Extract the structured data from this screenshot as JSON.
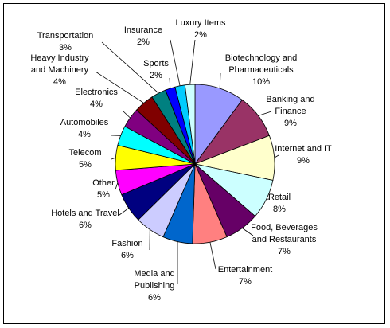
{
  "chart_data": {
    "type": "pie",
    "title": "",
    "legend": "none",
    "slices": [
      {
        "name": "Biotechnology and Pharmaceuticals",
        "label": "Biotechnology and\nPharmaceuticals",
        "value_label": "10%",
        "value": 10,
        "color": "#9999FF"
      },
      {
        "name": "Banking and Finance",
        "label": "Banking and\nFinance",
        "value_label": "9%",
        "value": 9,
        "color": "#993366"
      },
      {
        "name": "Internet and IT",
        "label": "Internet and IT",
        "value_label": "9%",
        "value": 9,
        "color": "#FFFFCC"
      },
      {
        "name": "Retail",
        "label": "Retail",
        "value_label": "8%",
        "value": 8,
        "color": "#CCFFFF"
      },
      {
        "name": "Food, Beverages and Restaurants",
        "label": "Food, Beverages\nand Restaurants",
        "value_label": "7%",
        "value": 7,
        "color": "#660066"
      },
      {
        "name": "Entertainment",
        "label": "Entertainment",
        "value_label": "7%",
        "value": 7,
        "color": "#FF8080"
      },
      {
        "name": "Media and Publishing",
        "label": "Media and\nPublishing",
        "value_label": "6%",
        "value": 6,
        "color": "#0066CC"
      },
      {
        "name": "Fashion",
        "label": "Fashion",
        "value_label": "6%",
        "value": 6,
        "color": "#CCCCFF"
      },
      {
        "name": "Hotels and Travel",
        "label": "Hotels and Travel",
        "value_label": "6%",
        "value": 6,
        "color": "#000080"
      },
      {
        "name": "Other",
        "label": "Other",
        "value_label": "5%",
        "value": 5,
        "color": "#FF00FF"
      },
      {
        "name": "Telecom",
        "label": "Telecom",
        "value_label": "5%",
        "value": 5,
        "color": "#FFFF00"
      },
      {
        "name": "Automobiles",
        "label": "Automobiles",
        "value_label": "4%",
        "value": 4,
        "color": "#00FFFF"
      },
      {
        "name": "Electronics",
        "label": "Electronics",
        "value_label": "4%",
        "value": 4,
        "color": "#800080"
      },
      {
        "name": "Heavy Industry and Machinery",
        "label": "Heavy Industry\nand Machinery",
        "value_label": "4%",
        "value": 4,
        "color": "#800000"
      },
      {
        "name": "Transportation",
        "label": "Transportation",
        "value_label": "3%",
        "value": 3,
        "color": "#008080"
      },
      {
        "name": "Sports",
        "label": "Sports",
        "value_label": "2%",
        "value": 2,
        "color": "#0000FF"
      },
      {
        "name": "Insurance",
        "label": "Insurance",
        "value_label": "2%",
        "value": 2,
        "color": "#00CCFF"
      },
      {
        "name": "Luxury Items",
        "label": "Luxury Items",
        "value_label": "2%",
        "value": 2,
        "color": "#CCFFFF"
      }
    ]
  }
}
